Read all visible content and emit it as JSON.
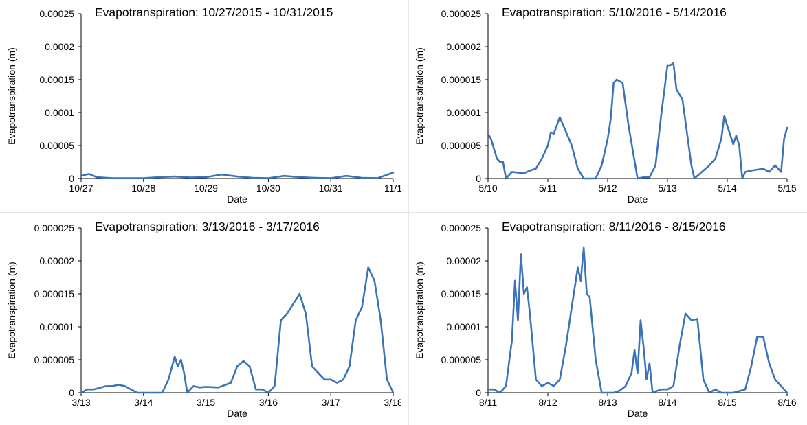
{
  "chart_data": [
    {
      "type": "line",
      "title": "Evapotranspiration: 10/27/2015 - 10/31/2015",
      "xlabel": "Date",
      "ylabel": "Evapotranspiration (m)",
      "ylim": [
        0,
        0.00025
      ],
      "y_ticks": [
        "0",
        "0.00005",
        "0.0001",
        "0.00015",
        "0.0002",
        "0.00025"
      ],
      "x_ticks": [
        "10/27",
        "10/28",
        "10/29",
        "10/30",
        "10/31",
        "11/1"
      ],
      "xlim": [
        "2015-10-27",
        "2015-11-01"
      ],
      "color": "#3b73b9",
      "series": [
        {
          "x": [
            "2015-10-27T00:00",
            "2015-10-27T03:00",
            "2015-10-27T06:00",
            "2015-10-27T12:00",
            "2015-10-28T00:00",
            "2015-10-28T06:00",
            "2015-10-28T12:00",
            "2015-10-28T18:00",
            "2015-10-29T00:00",
            "2015-10-29T06:00",
            "2015-10-29T12:00",
            "2015-10-29T18:00",
            "2015-10-30T00:00",
            "2015-10-30T06:00",
            "2015-10-30T12:00",
            "2015-10-30T18:00",
            "2015-10-31T00:00",
            "2015-10-31T06:00",
            "2015-10-31T12:00",
            "2015-10-31T18:00",
            "2015-11-01T00:00"
          ],
          "y": [
            4e-06,
            7e-06,
            2e-06,
            5e-07,
            5e-07,
            2e-06,
            3e-06,
            1.5e-06,
            2e-06,
            6e-06,
            3e-06,
            1e-06,
            5e-07,
            4e-06,
            2e-06,
            1e-06,
            5e-07,
            4e-06,
            1e-06,
            5e-07,
            9e-06
          ]
        }
      ]
    },
    {
      "type": "line",
      "title": "Evapotranspiration: 5/10/2016 - 5/14/2016",
      "xlabel": "Date",
      "ylabel": "Evapotranspiration (m)",
      "ylim": [
        0,
        2.5e-05
      ],
      "y_ticks": [
        "0",
        "0.000005",
        "0.00001",
        "0.000015",
        "0.00002",
        "0.000025"
      ],
      "x_ticks": [
        "5/10",
        "5/11",
        "5/12",
        "5/13",
        "5/14",
        "5/15"
      ],
      "xlim": [
        "2016-05-10",
        "2016-05-15"
      ],
      "color": "#3b73b9",
      "series": [
        {
          "x": [
            "2016-05-10T00:00",
            "2016-05-10T01:12",
            "2016-05-10T03:36",
            "2016-05-10T04:48",
            "2016-05-10T06:00",
            "2016-05-10T07:12",
            "2016-05-10T09:36",
            "2016-05-10T14:24",
            "2016-05-10T16:48",
            "2016-05-10T19:12",
            "2016-05-10T21:36",
            "2016-05-11T00:00",
            "2016-05-11T01:12",
            "2016-05-11T02:24",
            "2016-05-11T04:48",
            "2016-05-11T09:36",
            "2016-05-11T12:00",
            "2016-05-11T14:24",
            "2016-05-11T19:12",
            "2016-05-11T21:36",
            "2016-05-12T00:00",
            "2016-05-12T01:12",
            "2016-05-12T02:24",
            "2016-05-12T03:36",
            "2016-05-12T06:00",
            "2016-05-12T08:24",
            "2016-05-12T12:00",
            "2016-05-12T14:24",
            "2016-05-12T16:48",
            "2016-05-12T19:12",
            "2016-05-12T21:36",
            "2016-05-12T22:48",
            "2016-05-13T00:00",
            "2016-05-13T01:12",
            "2016-05-13T02:24",
            "2016-05-13T03:36",
            "2016-05-13T06:00",
            "2016-05-13T09:36",
            "2016-05-13T10:48",
            "2016-05-13T16:48",
            "2016-05-13T19:12",
            "2016-05-13T21:36",
            "2016-05-13T22:48",
            "2016-05-14T00:00",
            "2016-05-14T02:24",
            "2016-05-14T03:36",
            "2016-05-14T04:48",
            "2016-05-14T06:00",
            "2016-05-14T07:12",
            "2016-05-14T09:36",
            "2016-05-14T14:24",
            "2016-05-14T16:48",
            "2016-05-14T19:12",
            "2016-05-14T21:36",
            "2016-05-14T22:48",
            "2016-05-15T00:00"
          ],
          "y": [
            6.8e-06,
            6e-06,
            3e-06,
            2.5e-06,
            2.5e-06,
            0,
            1e-06,
            8e-07,
            1.2e-06,
            1.5e-06,
            3e-06,
            5e-06,
            7e-06,
            6.8e-06,
            9.3e-06,
            5e-06,
            1.5e-06,
            0,
            0,
            2e-06,
            6e-06,
            9e-06,
            1.45e-05,
            1.5e-05,
            1.45e-05,
            8e-06,
            0,
            2e-07,
            2e-07,
            2e-06,
            1e-05,
            1.35e-05,
            1.72e-05,
            1.72e-05,
            1.75e-05,
            1.35e-05,
            1.2e-05,
            2e-06,
            0,
            2e-06,
            3e-06,
            6e-06,
            9.5e-06,
            8e-06,
            5.2e-06,
            6.5e-06,
            5e-06,
            0,
            1e-06,
            1.2e-06,
            1.5e-06,
            1e-06,
            2e-06,
            1e-06,
            6e-06,
            7.7e-06
          ]
        }
      ]
    },
    {
      "type": "line",
      "title": "Evapotranspiration: 3/13/2016 - 3/17/2016",
      "xlabel": "Date",
      "ylabel": "Evapotranspiration (m)",
      "ylim": [
        0,
        2.5e-05
      ],
      "y_ticks": [
        "0",
        "0.000005",
        "0.00001",
        "0.000015",
        "0.00002",
        "0.000025"
      ],
      "x_ticks": [
        "3/13",
        "3/14",
        "3/15",
        "3/16",
        "3/17",
        "3/18"
      ],
      "xlim": [
        "2016-03-13",
        "2016-03-18"
      ],
      "color": "#3b73b9",
      "series": [
        {
          "x": [
            "2016-03-13T00:00",
            "2016-03-13T02:24",
            "2016-03-13T04:48",
            "2016-03-13T09:36",
            "2016-03-13T12:00",
            "2016-03-13T14:24",
            "2016-03-13T16:48",
            "2016-03-13T21:36",
            "2016-03-14T00:00",
            "2016-03-14T07:12",
            "2016-03-14T09:36",
            "2016-03-14T12:00",
            "2016-03-14T13:12",
            "2016-03-14T14:24",
            "2016-03-14T15:36",
            "2016-03-14T16:48",
            "2016-03-14T19:12",
            "2016-03-14T21:36",
            "2016-03-15T00:00",
            "2016-03-15T04:48",
            "2016-03-15T09:36",
            "2016-03-15T12:00",
            "2016-03-15T14:24",
            "2016-03-15T16:48",
            "2016-03-15T19:12",
            "2016-03-15T21:36",
            "2016-03-16T00:00",
            "2016-03-16T02:24",
            "2016-03-16T04:48",
            "2016-03-16T07:12",
            "2016-03-16T09:36",
            "2016-03-16T12:00",
            "2016-03-16T14:24",
            "2016-03-16T16:48",
            "2016-03-16T19:12",
            "2016-03-16T21:36",
            "2016-03-17T00:00",
            "2016-03-17T02:24",
            "2016-03-17T04:48",
            "2016-03-17T07:12",
            "2016-03-17T09:36",
            "2016-03-17T12:00",
            "2016-03-17T14:24",
            "2016-03-17T16:48",
            "2016-03-17T19:12",
            "2016-03-17T21:36",
            "2016-03-18T00:00"
          ],
          "y": [
            0,
            5e-07,
            5e-07,
            1e-06,
            1e-06,
            1.2e-06,
            1e-06,
            0,
            0,
            0,
            2e-06,
            5.5e-06,
            4e-06,
            5e-06,
            3e-06,
            0,
            1e-06,
            8e-07,
            9e-07,
            8e-07,
            1.5e-06,
            4e-06,
            4.8e-06,
            4e-06,
            5e-07,
            5e-07,
            0,
            1e-06,
            1.1e-05,
            1.2e-05,
            1.35e-05,
            1.5e-05,
            1.2e-05,
            4e-06,
            3e-06,
            2e-06,
            2e-06,
            1.5e-06,
            2e-06,
            4e-06,
            1.1e-05,
            1.3e-05,
            1.9e-05,
            1.7e-05,
            1.1e-05,
            2e-06,
            0
          ]
        }
      ]
    },
    {
      "type": "line",
      "title": "Evapotranspiration: 8/11/2016 - 8/15/2016",
      "xlabel": "Date",
      "ylabel": "Evapotranspiration (m)",
      "ylim": [
        0,
        2.5e-05
      ],
      "y_ticks": [
        "0",
        "0.000005",
        "0.00001",
        "0.000015",
        "0.00002",
        "0.000025"
      ],
      "x_ticks": [
        "8/11",
        "8/12",
        "8/13",
        "8/14",
        "8/15",
        "8/16"
      ],
      "xlim": [
        "2016-08-11",
        "2016-08-16"
      ],
      "color": "#3b73b9",
      "series": [
        {
          "x": [
            "2016-08-11T00:00",
            "2016-08-11T02:24",
            "2016-08-11T04:48",
            "2016-08-11T07:12",
            "2016-08-11T09:36",
            "2016-08-11T10:48",
            "2016-08-11T12:00",
            "2016-08-11T13:12",
            "2016-08-11T14:24",
            "2016-08-11T15:36",
            "2016-08-11T16:48",
            "2016-08-11T19:12",
            "2016-08-11T21:36",
            "2016-08-12T00:00",
            "2016-08-12T02:24",
            "2016-08-12T04:48",
            "2016-08-12T07:12",
            "2016-08-12T09:36",
            "2016-08-12T12:00",
            "2016-08-12T13:12",
            "2016-08-12T14:24",
            "2016-08-12T15:36",
            "2016-08-12T16:48",
            "2016-08-12T19:12",
            "2016-08-12T21:36",
            "2016-08-13T02:24",
            "2016-08-13T04:48",
            "2016-08-13T07:12",
            "2016-08-13T09:36",
            "2016-08-13T10:48",
            "2016-08-13T12:00",
            "2016-08-13T13:12",
            "2016-08-13T14:24",
            "2016-08-13T15:36",
            "2016-08-13T16:48",
            "2016-08-13T18:00",
            "2016-08-13T19:12",
            "2016-08-13T21:36",
            "2016-08-14T00:00",
            "2016-08-14T02:24",
            "2016-08-14T04:48",
            "2016-08-14T07:12",
            "2016-08-14T09:36",
            "2016-08-14T12:00",
            "2016-08-14T14:24",
            "2016-08-14T16:48",
            "2016-08-14T19:12",
            "2016-08-14T21:36",
            "2016-08-15T02:24",
            "2016-08-15T07:12",
            "2016-08-15T09:36",
            "2016-08-15T12:00",
            "2016-08-15T14:24",
            "2016-08-15T16:48",
            "2016-08-15T19:12",
            "2016-08-15T21:36",
            "2016-08-16T00:00"
          ],
          "y": [
            5e-07,
            5e-07,
            0,
            1e-06,
            8e-06,
            1.7e-05,
            1.1e-05,
            2.1e-05,
            1.5e-05,
            1.6e-05,
            1.2e-05,
            2e-06,
            1e-06,
            1.5e-06,
            1e-06,
            2e-06,
            7e-06,
            1.3e-05,
            1.9e-05,
            1.7e-05,
            2.2e-05,
            1.5e-05,
            1.45e-05,
            5e-06,
            0,
            0,
            3e-07,
            1e-06,
            3e-06,
            6.5e-06,
            3e-06,
            1.1e-05,
            7e-06,
            2e-06,
            4.5e-06,
            0,
            2e-07,
            5e-07,
            5e-07,
            1e-06,
            7e-06,
            1.2e-05,
            1.1e-05,
            1.12e-05,
            2e-06,
            0,
            5e-07,
            0,
            0,
            5e-07,
            4e-06,
            8.5e-06,
            8.5e-06,
            4.5e-06,
            2e-06,
            1e-06,
            0
          ]
        }
      ]
    }
  ]
}
